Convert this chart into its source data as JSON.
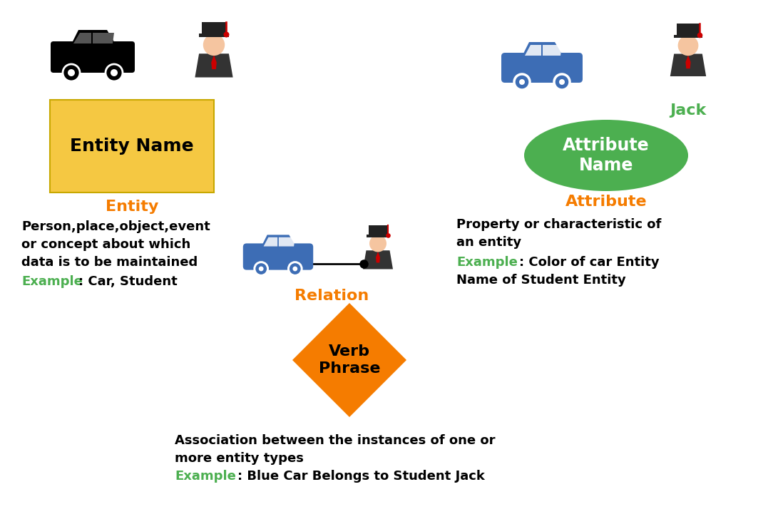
{
  "bg_color": "#ffffff",
  "orange_color": "#F57C00",
  "green_color": "#4CAF50",
  "gold_color": "#F5C842",
  "blue_car_color": "#3d6db5",
  "black_color": "#000000",
  "white_color": "#ffffff",
  "entity_box_color": "#F5C842",
  "entity_box_edge": "#c8a800",
  "attribute_ellipse_color": "#4CAF50",
  "relation_diamond_color": "#F57C00",
  "title_entity": "Entity Name",
  "title_attribute": "Attribute\nName",
  "title_relation": "Verb\nPhrase",
  "label_entity": "Entity",
  "label_attribute": "Attribute",
  "label_relation": "Relation",
  "label_jack": "Jack",
  "desc_entity_line1": "Person,place,object,event",
  "desc_entity_line2": "or concept about which",
  "desc_entity_line3": "data is to be maintained",
  "desc_entity_example_label": "Example",
  "desc_entity_example": ": Car, Student",
  "desc_attr_line1": "Property or characteristic of",
  "desc_attr_line2": "an entity",
  "desc_attr_example_label": "Example",
  "desc_attr_example1": ": Color of car Entity",
  "desc_attr_example2": "Name of Student Entity",
  "desc_rel_line1": "Association between the instances of one or",
  "desc_rel_line2": "more entity types",
  "desc_rel_example_label": "Example",
  "desc_rel_example": ": Blue Car Belongs to Student Jack"
}
